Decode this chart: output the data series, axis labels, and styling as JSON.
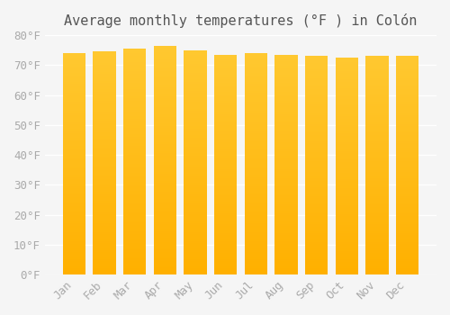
{
  "title": "Average monthly temperatures (°F ) in Colón",
  "months": [
    "Jan",
    "Feb",
    "Mar",
    "Apr",
    "May",
    "Jun",
    "Jul",
    "Aug",
    "Sep",
    "Oct",
    "Nov",
    "Dec"
  ],
  "values": [
    74,
    74.5,
    75.5,
    76.5,
    75,
    73.5,
    74,
    73.5,
    73,
    72.5,
    73,
    73
  ],
  "ylim": [
    0,
    80
  ],
  "yticks": [
    0,
    10,
    20,
    30,
    40,
    50,
    60,
    70,
    80
  ],
  "bar_color_top": "#FFC020",
  "bar_color_bottom": "#FFB000",
  "background_color": "#F5F5F5",
  "grid_color": "#FFFFFF",
  "title_fontsize": 11,
  "tick_fontsize": 9,
  "tick_color": "#AAAAAA",
  "title_color": "#555555"
}
